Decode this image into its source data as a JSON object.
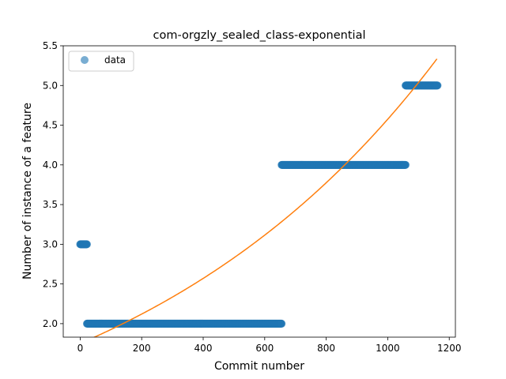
{
  "chart_data": {
    "type": "scatter",
    "title": "com-orgzly_sealed_class-exponential",
    "xlabel": "Commit number",
    "ylabel": "Number of instance of a feature",
    "xlim": [
      -55,
      1220
    ],
    "ylim": [
      1.83,
      5.5
    ],
    "xticks": [
      0,
      200,
      400,
      600,
      800,
      1000,
      1200
    ],
    "xtick_labels": [
      "0",
      "200",
      "400",
      "600",
      "800",
      "1000",
      "1200"
    ],
    "yticks": [
      2.0,
      2.5,
      3.0,
      3.5,
      4.0,
      4.5,
      5.0,
      5.5
    ],
    "ytick_labels": [
      "2.0",
      "2.5",
      "3.0",
      "3.5",
      "4.0",
      "4.5",
      "5.0",
      "5.5"
    ],
    "legend": {
      "position": "upper-left",
      "entries": [
        "data"
      ]
    },
    "grid": false,
    "series": [
      {
        "name": "data",
        "kind": "scatter",
        "color": "#1f77b4",
        "segments": [
          {
            "y": 3,
            "x_start": 0,
            "x_end": 22,
            "step": 1
          },
          {
            "y": 2,
            "x_start": 22,
            "x_end": 655,
            "step": 1
          },
          {
            "y": 4,
            "x_start": 655,
            "x_end": 1058,
            "step": 1
          },
          {
            "y": 5,
            "x_start": 1058,
            "x_end": 1162,
            "step": 1
          }
        ]
      },
      {
        "kind": "line",
        "color": "#ff7f0e",
        "model": "exponential",
        "equation": {
          "a": 1.75,
          "b": 0.000961
        },
        "x_range": [
          0,
          1162
        ]
      }
    ]
  }
}
